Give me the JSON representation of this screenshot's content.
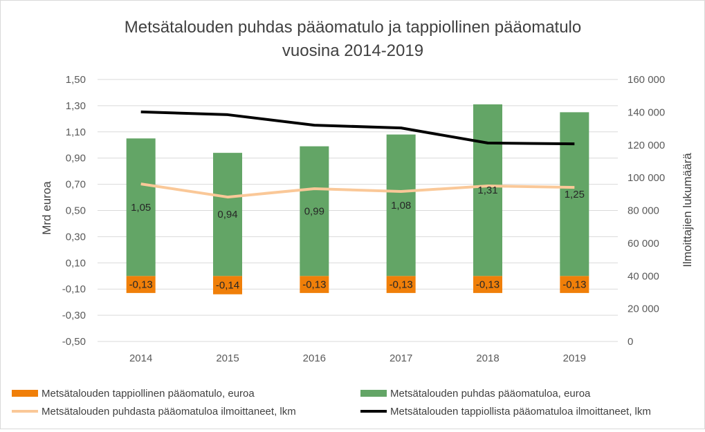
{
  "chart_data": {
    "type": "bar+line",
    "title_line1": "Metsätalouden puhdas pääomatulo ja tappiollinen pääomatulo",
    "title_line2": "vuosina 2014-2019",
    "ylabel": "Mrd euroa",
    "y2label": "Ilmoittajien lukumäärä",
    "ylim": [
      -0.5,
      1.5
    ],
    "y2lim": [
      0,
      160000
    ],
    "yticks": [
      "1,50",
      "1,30",
      "1,10",
      "0,90",
      "0,70",
      "0,50",
      "0,30",
      "0,10",
      "-0,10",
      "-0,30",
      "-0,50"
    ],
    "y2ticks": [
      "160 000",
      "140 000",
      "120 000",
      "100 000",
      "80 000",
      "60 000",
      "40 000",
      "20 000",
      "0"
    ],
    "categories": [
      "2014",
      "2015",
      "2016",
      "2017",
      "2018",
      "2019"
    ],
    "series": [
      {
        "name": "Metsätalouden tappiollinen pääomatulo, euroa",
        "kind": "bar",
        "axis": "left",
        "color": "#f07f09",
        "values": [
          -0.13,
          -0.14,
          -0.13,
          -0.13,
          -0.13,
          -0.13
        ],
        "labels": [
          "-0,13",
          "-0,14",
          "-0,13",
          "-0,13",
          "-0,13",
          "-0,13"
        ]
      },
      {
        "name": "Metsätalouden puhdas pääomatuloa, euroa",
        "kind": "bar",
        "axis": "left",
        "color": "#63a566",
        "values": [
          1.05,
          0.94,
          0.99,
          1.08,
          1.31,
          1.25
        ],
        "labels": [
          "1,05",
          "0,94",
          "0,99",
          "1,08",
          "1,31",
          "1,25"
        ]
      },
      {
        "name": "Metsätalouden puhdasta pääomatuloa ilmoittaneet, lkm",
        "kind": "line",
        "axis": "right",
        "color": "#fac898",
        "values": [
          96200,
          88200,
          93300,
          91600,
          95000,
          94100
        ]
      },
      {
        "name": "Metsätalouden tappiollista pääomatuloa ilmoittaneet, lkm",
        "kind": "line",
        "axis": "right",
        "color": "#000000",
        "values": [
          140200,
          138500,
          132100,
          130400,
          121200,
          120700
        ]
      }
    ],
    "legend_position": "bottom",
    "grid": true
  }
}
